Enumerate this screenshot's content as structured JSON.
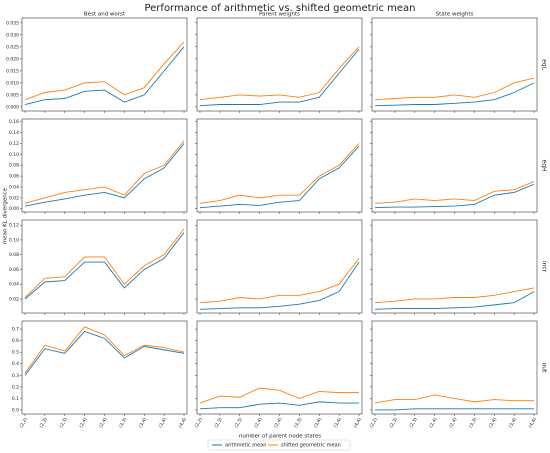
{
  "chart_data": {
    "type": "line",
    "title": "Performance of arithmetic vs. shifted geometric mean",
    "xlabel": "number of parent node states",
    "ylabel": "mean KL divergence",
    "categories": [
      "(2,2)",
      "(2,3)",
      "(2,3)",
      "(2,4)",
      "(2,4)",
      "(3,3)",
      "(3,4)",
      "(3,4)",
      "(4,4)"
    ],
    "legend": [
      {
        "name": "arithmetic mean",
        "color": "#1f77b4"
      },
      {
        "name": "shifted geometric mean",
        "color": "#ff7f0e"
      }
    ],
    "columns": [
      "Best and worst",
      "Parent weights",
      "State weights"
    ],
    "rows": [
      {
        "label": "eqL",
        "ylim": [
          -0.0017,
          0.037
        ],
        "yticks": [
          {
            "value": 0,
            "label": "0.000"
          },
          0.005,
          {
            "value": 0.01,
            "label": "0.010"
          },
          0.015,
          {
            "value": 0.02,
            "label": "0.020"
          },
          0.025,
          {
            "value": 0.03,
            "label": "0.030"
          },
          0.035
        ],
        "panels": [
          {
            "series": [
              {
                "values": [
                  0.001,
                  0.003,
                  0.0035,
                  0.0065,
                  0.007,
                  0.002,
                  0.005,
                  0.015,
                  0.025
                ]
              },
              {
                "values": [
                  0.003,
                  0.006,
                  0.007,
                  0.01,
                  0.0105,
                  0.005,
                  0.008,
                  0.018,
                  0.027
                ]
              }
            ]
          },
          {
            "series": [
              {
                "values": [
                  0.0005,
                  0.001,
                  0.001,
                  0.001,
                  0.002,
                  0.002,
                  0.004,
                  0.014,
                  0.024
                ]
              },
              {
                "values": [
                  0.003,
                  0.004,
                  0.005,
                  0.0045,
                  0.005,
                  0.004,
                  0.006,
                  0.016,
                  0.025
                ]
              }
            ]
          },
          {
            "series": [
              {
                "values": [
                  0.0005,
                  0.0007,
                  0.001,
                  0.001,
                  0.0015,
                  0.002,
                  0.003,
                  0.006,
                  0.01
                ]
              },
              {
                "values": [
                  0.003,
                  0.0035,
                  0.004,
                  0.004,
                  0.005,
                  0.004,
                  0.006,
                  0.01,
                  0.012
                ]
              }
            ]
          }
        ]
      },
      {
        "label": "eqH",
        "ylim": [
          -0.006,
          0.165
        ],
        "yticks": [
          {
            "value": 0,
            "label": "0.00"
          },
          0.02,
          0.04,
          0.06,
          0.08,
          {
            "value": 0.1,
            "label": "0.10"
          },
          0.12,
          0.14,
          0.16
        ],
        "panels": [
          {
            "series": [
              {
                "values": [
                  0.005,
                  0.012,
                  0.018,
                  0.025,
                  0.03,
                  0.02,
                  0.055,
                  0.075,
                  0.12
                ]
              },
              {
                "values": [
                  0.01,
                  0.02,
                  0.03,
                  0.035,
                  0.04,
                  0.025,
                  0.065,
                  0.08,
                  0.125
                ]
              }
            ]
          },
          {
            "series": [
              {
                "values": [
                  0.002,
                  0.005,
                  0.008,
                  0.006,
                  0.012,
                  0.015,
                  0.055,
                  0.075,
                  0.115
                ]
              },
              {
                "values": [
                  0.01,
                  0.015,
                  0.025,
                  0.02,
                  0.025,
                  0.025,
                  0.06,
                  0.08,
                  0.12
                ]
              }
            ]
          },
          {
            "series": [
              {
                "values": [
                  0.002,
                  0.003,
                  0.003,
                  0.004,
                  0.005,
                  0.008,
                  0.025,
                  0.03,
                  0.045
                ]
              },
              {
                "values": [
                  0.01,
                  0.012,
                  0.018,
                  0.015,
                  0.018,
                  0.015,
                  0.032,
                  0.035,
                  0.05
                ]
              }
            ]
          }
        ]
      },
      {
        "label": "incr",
        "ylim": [
          0.001,
          0.127
        ],
        "yticks": [
          0.02,
          0.04,
          0.06,
          0.08,
          {
            "value": 0.1,
            "label": "0.10"
          },
          0.12
        ],
        "panels": [
          {
            "series": [
              {
                "values": [
                  0.02,
                  0.043,
                  0.045,
                  0.07,
                  0.07,
                  0.035,
                  0.06,
                  0.075,
                  0.11
                ]
              },
              {
                "values": [
                  0.022,
                  0.048,
                  0.05,
                  0.077,
                  0.077,
                  0.04,
                  0.065,
                  0.08,
                  0.115
                ]
              }
            ]
          },
          {
            "series": [
              {
                "values": [
                  0.006,
                  0.007,
                  0.008,
                  0.008,
                  0.01,
                  0.013,
                  0.018,
                  0.03,
                  0.07
                ]
              },
              {
                "values": [
                  0.015,
                  0.017,
                  0.022,
                  0.02,
                  0.025,
                  0.025,
                  0.03,
                  0.04,
                  0.075
                ]
              }
            ]
          },
          {
            "series": [
              {
                "values": [
                  0.006,
                  0.007,
                  0.007,
                  0.007,
                  0.008,
                  0.009,
                  0.012,
                  0.015,
                  0.03
                ]
              },
              {
                "values": [
                  0.015,
                  0.017,
                  0.02,
                  0.02,
                  0.022,
                  0.022,
                  0.025,
                  0.03,
                  0.035
                ]
              }
            ]
          }
        ]
      },
      {
        "label": "out",
        "ylim": [
          -0.035,
          0.77
        ],
        "yticks": [
          {
            "value": 0,
            "label": "0.0"
          },
          0.1,
          0.2,
          0.3,
          0.4,
          0.5,
          0.6,
          0.7
        ],
        "panels": [
          {
            "series": [
              {
                "values": [
                  0.3,
                  0.53,
                  0.49,
                  0.68,
                  0.62,
                  0.45,
                  0.55,
                  0.52,
                  0.49
                ]
              },
              {
                "values": [
                  0.32,
                  0.56,
                  0.51,
                  0.72,
                  0.65,
                  0.47,
                  0.56,
                  0.54,
                  0.5
                ]
              }
            ]
          },
          {
            "series": [
              {
                "values": [
                  0.01,
                  0.02,
                  0.02,
                  0.05,
                  0.06,
                  0.04,
                  0.07,
                  0.06,
                  0.06
                ]
              },
              {
                "values": [
                  0.06,
                  0.12,
                  0.11,
                  0.19,
                  0.17,
                  0.1,
                  0.16,
                  0.15,
                  0.15
                ]
              }
            ]
          },
          {
            "series": [
              {
                "values": [
                  0,
                  0,
                  0.01,
                  0.01,
                  0.01,
                  0.01,
                  0.01,
                  0.01,
                  0.01
                ]
              },
              {
                "values": [
                  0.06,
                  0.09,
                  0.09,
                  0.13,
                  0.1,
                  0.07,
                  0.09,
                  0.08,
                  0.08
                ]
              }
            ]
          }
        ]
      }
    ]
  }
}
